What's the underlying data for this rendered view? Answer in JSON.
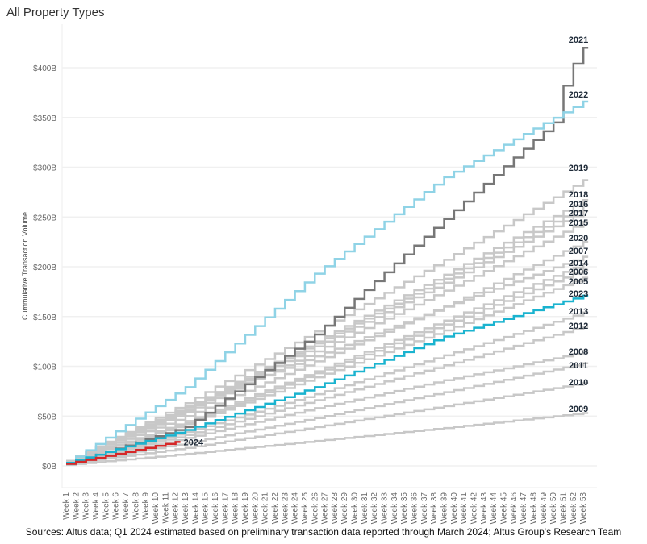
{
  "chart_data": {
    "type": "line",
    "style": "step",
    "title": "All Property Types",
    "ylabel": "Cummulative Transaction Volume",
    "xlabel": "",
    "ylim": [
      0,
      420
    ],
    "y_ticks": [
      "$0B",
      "$50B",
      "$100B",
      "$150B",
      "$200B",
      "$250B",
      "$300B",
      "$350B",
      "$400B"
    ],
    "y_tick_values": [
      0,
      50,
      100,
      150,
      200,
      250,
      300,
      350,
      400
    ],
    "x_ticks": [
      "Week 1",
      "Week 2",
      "Week 3",
      "Week 4",
      "Week 5",
      "Week 6",
      "Week 7",
      "Week 8",
      "Week 9",
      "Week 10",
      "Week 11",
      "Week 12",
      "Week 13",
      "Week 14",
      "Week 15",
      "Week 16",
      "Week 17",
      "Week 18",
      "Week 19",
      "Week 20",
      "Week 21",
      "Week 22",
      "Week 23",
      "Week 24",
      "Week 25",
      "Week 26",
      "Week 27",
      "Week 28",
      "Week 29",
      "Week 30",
      "Week 31",
      "Week 32",
      "Week 33",
      "Week 34",
      "Week 35",
      "Week 36",
      "Week 37",
      "Week 38",
      "Week 39",
      "Week 40",
      "Week 41",
      "Week 42",
      "Week 43",
      "Week 44",
      "Week 45",
      "Week 46",
      "Week 47",
      "Week 48",
      "Week 49",
      "Week 50",
      "Week 51",
      "Week 52",
      "Week 53"
    ],
    "grid": true,
    "units": "$B",
    "series": [
      {
        "name": "2021",
        "color": "#777777",
        "weeks": [
          1,
          13,
          26,
          39,
          50,
          51,
          52,
          53
        ],
        "values": [
          2,
          39,
          132,
          248,
          345,
          382,
          404,
          420
        ]
      },
      {
        "name": "2022",
        "color": "#8fd3e6",
        "weeks": [
          1,
          13,
          26,
          39,
          53
        ],
        "values": [
          3,
          79,
          193,
          290,
          366
        ]
      },
      {
        "name": "2019",
        "color": "#c8c8c8",
        "weeks": [
          1,
          13,
          26,
          39,
          53
        ],
        "values": [
          5,
          63,
          135,
          207,
          287
        ]
      },
      {
        "name": "2018",
        "color": "#c8c8c8",
        "weeks": [
          1,
          13,
          26,
          39,
          53
        ],
        "values": [
          5,
          59,
          125,
          192,
          267
        ]
      },
      {
        "name": "2016",
        "color": "#c8c8c8",
        "weeks": [
          1,
          13,
          26,
          39,
          53
        ],
        "values": [
          5,
          57,
          123,
          188,
          261
        ]
      },
      {
        "name": "2017",
        "color": "#c8c8c8",
        "weeks": [
          1,
          13,
          26,
          39,
          53
        ],
        "values": [
          5,
          56,
          120,
          184,
          256
        ]
      },
      {
        "name": "2015",
        "color": "#c8c8c8",
        "weeks": [
          1,
          13,
          26,
          39,
          53
        ],
        "values": [
          5,
          54,
          115,
          176,
          245
        ]
      },
      {
        "name": "2020",
        "color": "#c8c8c8",
        "weeks": [
          1,
          13,
          26,
          39,
          53
        ],
        "values": [
          5,
          60,
          110,
          160,
          225
        ]
      },
      {
        "name": "2007",
        "color": "#c8c8c8",
        "weeks": [
          1,
          13,
          26,
          39,
          53
        ],
        "values": [
          4,
          50,
          105,
          160,
          210
        ]
      },
      {
        "name": "2014",
        "color": "#c8c8c8",
        "weeks": [
          1,
          13,
          26,
          39,
          53
        ],
        "values": [
          4,
          45,
          95,
          146,
          203
        ]
      },
      {
        "name": "2006",
        "color": "#c8c8c8",
        "weeks": [
          1,
          13,
          26,
          39,
          53
        ],
        "values": [
          4,
          43,
          93,
          142,
          197
        ]
      },
      {
        "name": "2005",
        "color": "#c8c8c8",
        "weeks": [
          1,
          13,
          26,
          39,
          53
        ],
        "values": [
          4,
          42,
          89,
          136,
          189
        ]
      },
      {
        "name": "2023",
        "color": "#1ab3cf",
        "weeks": [
          1,
          13,
          26,
          39,
          53
        ],
        "values": [
          3,
          36,
          79,
          130,
          171
        ]
      },
      {
        "name": "2013",
        "color": "#c8c8c8",
        "weeks": [
          1,
          13,
          26,
          39,
          53
        ],
        "values": [
          3,
          34,
          72,
          111,
          154
        ]
      },
      {
        "name": "2012",
        "color": "#c8c8c8",
        "weeks": [
          1,
          13,
          26,
          39,
          53
        ],
        "values": [
          3,
          31,
          66,
          101,
          140
        ]
      },
      {
        "name": "2008",
        "color": "#c8c8c8",
        "weeks": [
          1,
          13,
          26,
          39,
          53
        ],
        "values": [
          2,
          28,
          58,
          86,
          114
        ]
      },
      {
        "name": "2011",
        "color": "#c8c8c8",
        "weeks": [
          1,
          13,
          26,
          39,
          53
        ],
        "values": [
          2,
          23,
          48,
          74,
          103
        ]
      },
      {
        "name": "2010",
        "color": "#c8c8c8",
        "weeks": [
          1,
          13,
          26,
          39,
          53
        ],
        "values": [
          2,
          18,
          39,
          60,
          83
        ]
      },
      {
        "name": "2009",
        "color": "#c8c8c8",
        "weeks": [
          1,
          13,
          26,
          39,
          53
        ],
        "values": [
          1,
          12,
          25,
          38,
          53
        ]
      },
      {
        "name": "2024",
        "color": "#d62728",
        "weeks": [
          1,
          6,
          12
        ],
        "values": [
          2,
          12,
          24
        ]
      }
    ]
  },
  "source": "Sources: Altus data; Q1 2024 estimated based on preliminary transaction data reported through March 2024; Altus Group's Research Team"
}
